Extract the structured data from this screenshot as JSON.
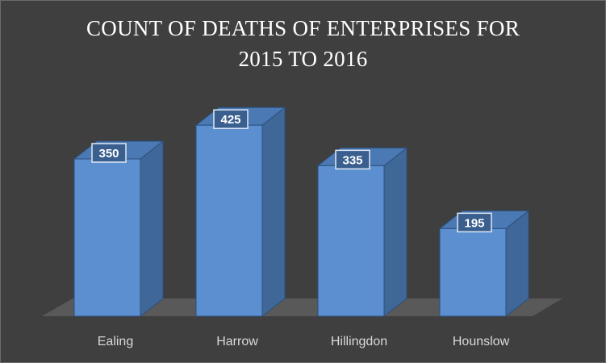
{
  "chart_data": {
    "type": "bar",
    "title_line1": "COUNT OF DEATHS OF ENTERPRISES FOR",
    "title_line2": "2015 TO 2016",
    "categories": [
      "Ealing",
      "Harrow",
      "Hillingdon",
      "Hounslow"
    ],
    "values": [
      350,
      425,
      335,
      195
    ],
    "xlabel": "",
    "ylabel": "",
    "ylim": [
      0,
      450
    ],
    "grid": false,
    "legend": "none",
    "style": "3d-column",
    "colors": {
      "background": "#404040",
      "bar_front": "#5b8fd0",
      "bar_side": "#3f6899",
      "bar_top": "#4b79b3",
      "bar_edge": "#2c4f7c",
      "floor": "#595959",
      "label_box": "#3a5f8f",
      "label_border": "#dfe8f3",
      "text": "#ffffff",
      "axis_text": "#d9d9d9"
    }
  }
}
